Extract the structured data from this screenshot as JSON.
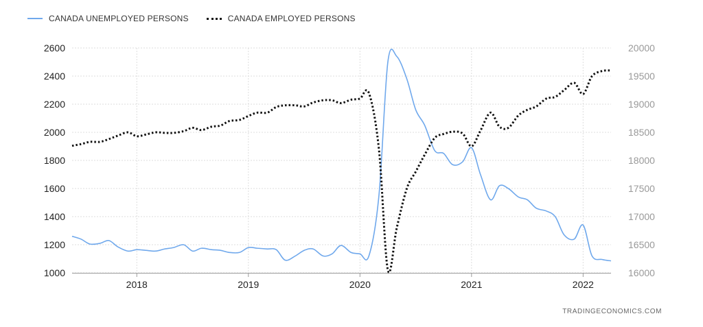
{
  "legend": {
    "unemployed": "CANADA UNEMPLOYED PERSONS",
    "employed": "CANADA EMPLOYED PERSONS"
  },
  "source": "TRADINGECONOMICS.COM",
  "colors": {
    "unemployed": "#6fa8ec",
    "employed": "#111111",
    "grid": "#dddddd"
  },
  "chart_data": {
    "type": "line",
    "title": "",
    "xlabel": "",
    "ylabel_left": "",
    "ylabel_right": "",
    "x_ticks": [
      "2018",
      "2019",
      "2020",
      "2021",
      "2022"
    ],
    "x_range": [
      2017.42,
      2022.25
    ],
    "y_left_range": [
      1000,
      2600
    ],
    "y_left_ticks": [
      1000,
      1200,
      1400,
      1600,
      1800,
      2000,
      2200,
      2400,
      2600
    ],
    "y_right_range": [
      16000,
      20000
    ],
    "y_right_ticks": [
      16000,
      16500,
      17000,
      17500,
      18000,
      18500,
      19000,
      19500,
      20000
    ],
    "grid": true,
    "legend_position": "top-left",
    "series": [
      {
        "name": "CANADA UNEMPLOYED PERSONS",
        "axis": "left",
        "style": "solid",
        "x": [
          2017.42,
          2017.5,
          2017.58,
          2017.67,
          2017.75,
          2017.83,
          2017.92,
          2018.0,
          2018.08,
          2018.17,
          2018.25,
          2018.33,
          2018.42,
          2018.5,
          2018.58,
          2018.67,
          2018.75,
          2018.83,
          2018.92,
          2019.0,
          2019.08,
          2019.17,
          2019.25,
          2019.33,
          2019.42,
          2019.5,
          2019.58,
          2019.67,
          2019.75,
          2019.83,
          2019.92,
          2020.0,
          2020.08,
          2020.17,
          2020.25,
          2020.33,
          2020.42,
          2020.5,
          2020.58,
          2020.67,
          2020.75,
          2020.83,
          2020.92,
          2021.0,
          2021.08,
          2021.17,
          2021.25,
          2021.33,
          2021.42,
          2021.5,
          2021.58,
          2021.67,
          2021.75,
          2021.83,
          2021.92,
          2022.0,
          2022.08,
          2022.17,
          2022.25
        ],
        "values": [
          1260,
          1240,
          1205,
          1210,
          1230,
          1185,
          1155,
          1165,
          1160,
          1155,
          1170,
          1180,
          1200,
          1155,
          1175,
          1165,
          1160,
          1145,
          1145,
          1180,
          1175,
          1170,
          1165,
          1090,
          1120,
          1160,
          1170,
          1120,
          1135,
          1195,
          1145,
          1135,
          1120,
          1550,
          2500,
          2540,
          2380,
          2160,
          2050,
          1870,
          1850,
          1770,
          1790,
          1890,
          1700,
          1520,
          1620,
          1600,
          1540,
          1520,
          1460,
          1440,
          1400,
          1270,
          1240,
          1340,
          1120,
          1095,
          1085
        ]
      },
      {
        "name": "CANADA EMPLOYED PERSONS",
        "axis": "right",
        "style": "dotted",
        "x": [
          2017.42,
          2017.5,
          2017.58,
          2017.67,
          2017.75,
          2017.83,
          2017.92,
          2018.0,
          2018.08,
          2018.17,
          2018.25,
          2018.33,
          2018.42,
          2018.5,
          2018.58,
          2018.67,
          2018.75,
          2018.83,
          2018.92,
          2019.0,
          2019.08,
          2019.17,
          2019.25,
          2019.33,
          2019.42,
          2019.5,
          2019.58,
          2019.67,
          2019.75,
          2019.83,
          2019.92,
          2020.0,
          2020.08,
          2020.17,
          2020.25,
          2020.33,
          2020.42,
          2020.5,
          2020.58,
          2020.67,
          2020.75,
          2020.83,
          2020.92,
          2021.0,
          2021.08,
          2021.17,
          2021.25,
          2021.33,
          2021.42,
          2021.5,
          2021.58,
          2021.67,
          2021.75,
          2021.83,
          2021.92,
          2022.0,
          2022.08,
          2022.17,
          2022.25
        ],
        "values": [
          18260,
          18290,
          18330,
          18330,
          18380,
          18440,
          18500,
          18430,
          18460,
          18500,
          18490,
          18490,
          18520,
          18580,
          18540,
          18600,
          18620,
          18700,
          18720,
          18790,
          18850,
          18850,
          18950,
          18980,
          18980,
          18960,
          19030,
          19070,
          19070,
          19020,
          19080,
          19100,
          19200,
          18200,
          16050,
          16800,
          17500,
          17800,
          18100,
          18400,
          18470,
          18510,
          18480,
          18250,
          18530,
          18850,
          18600,
          18580,
          18800,
          18900,
          18960,
          19100,
          19130,
          19250,
          19380,
          19180,
          19500,
          19590,
          19600
        ]
      }
    ]
  }
}
